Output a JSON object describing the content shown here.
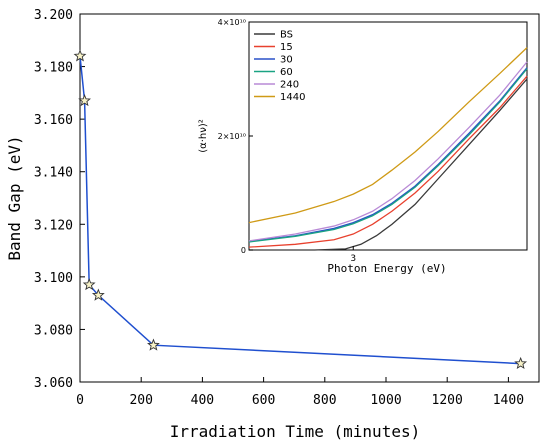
{
  "chart_data": [
    {
      "type": "line",
      "title": "",
      "xlabel": "Irradiation Time (minutes)",
      "ylabel": "Band Gap (eV)",
      "xlim": [
        0,
        1500
      ],
      "ylim": [
        3.06,
        3.2
      ],
      "xticks": [
        0,
        200,
        400,
        600,
        800,
        1000,
        1200,
        1400
      ],
      "xtick_labels": [
        "0",
        "200",
        "400",
        "600",
        "800",
        "1000",
        "1200",
        "1400"
      ],
      "yticks": [
        3.06,
        3.08,
        3.1,
        3.12,
        3.14,
        3.16,
        3.18,
        3.2
      ],
      "ytick_labels": [
        "3.060",
        "3.080",
        "3.100",
        "3.120",
        "3.140",
        "3.160",
        "3.180",
        "3.200"
      ],
      "grid": false,
      "series": [
        {
          "x": [
            0,
            15,
            30,
            60,
            240,
            1440
          ],
          "y": [
            3.184,
            3.167,
            3.097,
            3.093,
            3.074,
            3.067
          ],
          "color": "#1f4fcf",
          "marker": "star",
          "marker_fill": "#f7f2c8"
        }
      ]
    },
    {
      "type": "line",
      "title": "",
      "xlabel": "Photon Energy (eV)",
      "ylabel": "(α·hν)²",
      "xlim": [
        2.73,
        3.45
      ],
      "ylim": [
        0,
        40000000000.0
      ],
      "xticks": [
        3
      ],
      "xtick_labels": [
        "3"
      ],
      "yticks": [
        0,
        20000000000.0,
        40000000000.0
      ],
      "ytick_labels": [
        "0",
        "2×10¹⁰",
        "4×10¹⁰"
      ],
      "grid": false,
      "legend_position": "top-left",
      "series": [
        {
          "name": "BS",
          "color": "#3a3a3a",
          "x": [
            2.73,
            2.8,
            2.9,
            2.98,
            3.02,
            3.06,
            3.1,
            3.16,
            3.22,
            3.3,
            3.38,
            3.45
          ],
          "y": [
            0,
            0,
            0,
            200000000.0,
            1000000000.0,
            2500000000.0,
            4500000000.0,
            8000000000.0,
            12500000000.0,
            18500000000.0,
            24500000000.0,
            30000000000.0
          ]
        },
        {
          "name": "15",
          "color": "#e8412e",
          "x": [
            2.73,
            2.85,
            2.95,
            3.0,
            3.05,
            3.1,
            3.16,
            3.22,
            3.3,
            3.38,
            3.45
          ],
          "y": [
            500000000.0,
            1000000000.0,
            1800000000.0,
            2800000000.0,
            4500000000.0,
            6800000000.0,
            10000000000.0,
            13800000000.0,
            19500000000.0,
            25000000000.0,
            30500000000.0
          ]
        },
        {
          "name": "30",
          "color": "#2a50c8",
          "x": [
            2.73,
            2.85,
            2.95,
            3.0,
            3.05,
            3.1,
            3.16,
            3.22,
            3.3,
            3.38,
            3.45
          ],
          "y": [
            1500000000.0,
            2500000000.0,
            3800000000.0,
            4800000000.0,
            6200000000.0,
            8200000000.0,
            11200000000.0,
            15000000000.0,
            20500000000.0,
            26200000000.0,
            32000000000.0
          ]
        },
        {
          "name": "60",
          "color": "#1aa383",
          "x": [
            2.73,
            2.85,
            2.95,
            3.0,
            3.05,
            3.1,
            3.16,
            3.22,
            3.3,
            3.38,
            3.45
          ],
          "y": [
            1400000000.0,
            2400000000.0,
            3600000000.0,
            4600000000.0,
            6000000000.0,
            8000000000.0,
            11000000000.0,
            14800000000.0,
            20200000000.0,
            26000000000.0,
            31800000000.0
          ]
        },
        {
          "name": "240",
          "color": "#b98ad6",
          "x": [
            2.73,
            2.85,
            2.95,
            3.0,
            3.05,
            3.1,
            3.16,
            3.22,
            3.3,
            3.38,
            3.45
          ],
          "y": [
            1600000000.0,
            2800000000.0,
            4200000000.0,
            5300000000.0,
            6800000000.0,
            9000000000.0,
            12200000000.0,
            16000000000.0,
            21500000000.0,
            27200000000.0,
            33000000000.0
          ]
        },
        {
          "name": "1440",
          "color": "#cf9a16",
          "x": [
            2.73,
            2.85,
            2.95,
            3.0,
            3.05,
            3.1,
            3.16,
            3.22,
            3.3,
            3.38,
            3.45
          ],
          "y": [
            4800000000.0,
            6500000000.0,
            8500000000.0,
            9800000000.0,
            11500000000.0,
            14000000000.0,
            17200000000.0,
            20800000000.0,
            26000000000.0,
            31000000000.0,
            35500000000.0
          ]
        }
      ]
    }
  ]
}
